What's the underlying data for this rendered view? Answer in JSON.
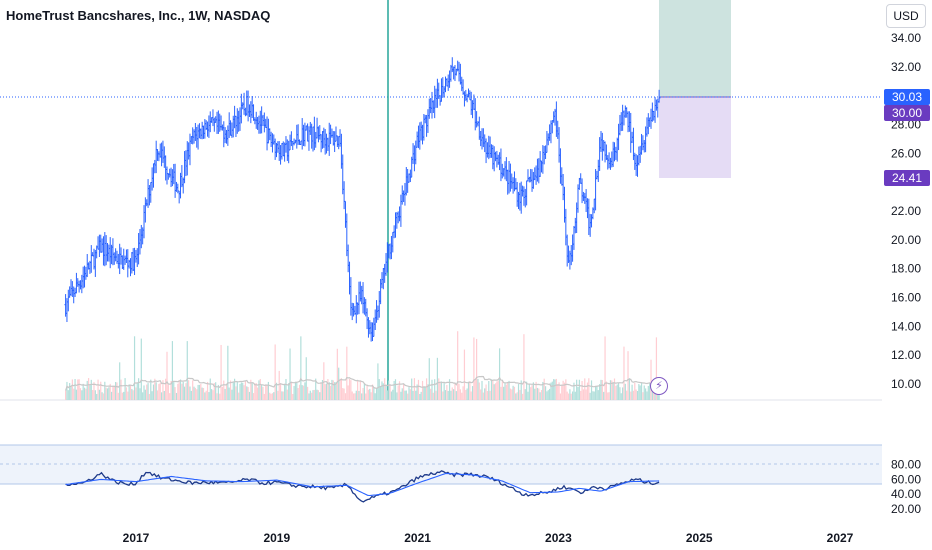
{
  "header": {
    "title": "HomeTrust Bancshares, Inc., 1W, NASDAQ",
    "currency": "USD"
  },
  "price_tags": {
    "current": "30.03",
    "target": "30.00",
    "stop": "24.41"
  },
  "colors": {
    "candle": "#2962ff",
    "volume_up": "#b2dfdb",
    "volume_down": "#ffcdd2",
    "rsi": "#1e3a8a",
    "rsi_ma": "#2962ff",
    "profit_zone": "#cde3df",
    "loss_zone": "#e5dcf5",
    "tag_current": "#2962ff",
    "tag_position": "#6a3bc0",
    "vertical_marker": "#26a69a",
    "lightning_icon": "#7e57c2"
  },
  "icons": {
    "lightning": "lightning-icon"
  },
  "chart_data": [
    {
      "type": "line",
      "name": "price",
      "series": [
        {
          "x": [
            2016.0,
            2016.5,
            2016.8,
            2017.0,
            2017.3,
            2017.6,
            2017.8,
            2018.0,
            2018.3,
            2018.6,
            2018.9,
            2019.1,
            2019.4,
            2019.7,
            2019.9,
            2020.05,
            2020.2,
            2020.35,
            2020.6,
            2020.85,
            2021.0,
            2021.2,
            2021.5,
            2021.75,
            2022.0,
            2022.2,
            2022.45,
            2022.7,
            2022.95,
            2023.15,
            2023.3,
            2023.45,
            2023.6,
            2023.75,
            2023.95,
            2024.1,
            2024.3,
            2024.45
          ],
          "values": [
            15.5,
            19.5,
            18.5,
            18.5,
            26.5,
            23.5,
            27.0,
            28.0,
            27.5,
            29.5,
            27.0,
            26.0,
            27.5,
            27.0,
            27.0,
            15.0,
            16.0,
            13.5,
            19.5,
            24.0,
            27.0,
            29.0,
            32.0,
            29.5,
            26.0,
            25.0,
            23.0,
            24.5,
            29.0,
            18.0,
            24.0,
            21.0,
            27.0,
            25.5,
            29.0,
            25.5,
            28.5,
            30.0
          ]
        }
      ],
      "ylim": [
        8.6,
        36.0
      ],
      "y_ticks": [
        "10.00",
        "12.00",
        "14.00",
        "16.00",
        "18.00",
        "20.00",
        "22.00",
        "24.00",
        "26.00",
        "28.00",
        "30.00",
        "32.00",
        "34.00"
      ],
      "x_ticks": [
        "2017",
        "2019",
        "2021",
        "2023",
        "2025",
        "2027"
      ],
      "current_price": 30.03,
      "position": {
        "entry": 30.0,
        "stop": 24.41
      },
      "grid": false
    },
    {
      "type": "line",
      "name": "rsi",
      "series": [
        {
          "x": [
            2016.0,
            2016.25,
            2016.5,
            2016.7,
            2016.9,
            2017.0,
            2017.15,
            2017.35,
            2017.6,
            2017.8,
            2018.0,
            2018.3,
            2018.6,
            2018.8,
            2019.0,
            2019.2,
            2019.5,
            2019.8,
            2020.0,
            2020.2,
            2020.45,
            2020.7,
            2021.0,
            2021.3,
            2021.5,
            2021.75,
            2022.0,
            2022.2,
            2022.5,
            2022.7,
            2022.9,
            2023.05,
            2023.2,
            2023.35,
            2023.5,
            2023.7,
            2023.9,
            2024.1,
            2024.3,
            2024.45
          ],
          "values": [
            54,
            55,
            68,
            57,
            53,
            55,
            71,
            62,
            58,
            55,
            56,
            55,
            60,
            55,
            56,
            52,
            50,
            48,
            53,
            30,
            38,
            45,
            62,
            70,
            66,
            67,
            63,
            55,
            40,
            40,
            44,
            50,
            47,
            42,
            50,
            48,
            55,
            60,
            55,
            57
          ]
        },
        {
          "x": [
            2016.0,
            2016.5,
            2017.0,
            2017.5,
            2018.0,
            2018.5,
            2019.0,
            2019.5,
            2020.0,
            2020.3,
            2020.6,
            2021.0,
            2021.4,
            2021.8,
            2022.2,
            2022.6,
            2023.0,
            2023.3,
            2023.6,
            2024.0,
            2024.45
          ],
          "values": [
            53,
            60,
            57,
            64,
            58,
            57,
            59,
            50,
            52,
            38,
            41,
            55,
            68,
            66,
            58,
            42,
            43,
            48,
            44,
            57,
            58
          ]
        }
      ],
      "ylim": [
        14,
        92
      ],
      "y_ticks": [
        "20.00",
        "40.00",
        "60.00",
        "80.00"
      ],
      "bands": [
        30,
        50,
        70
      ]
    }
  ]
}
